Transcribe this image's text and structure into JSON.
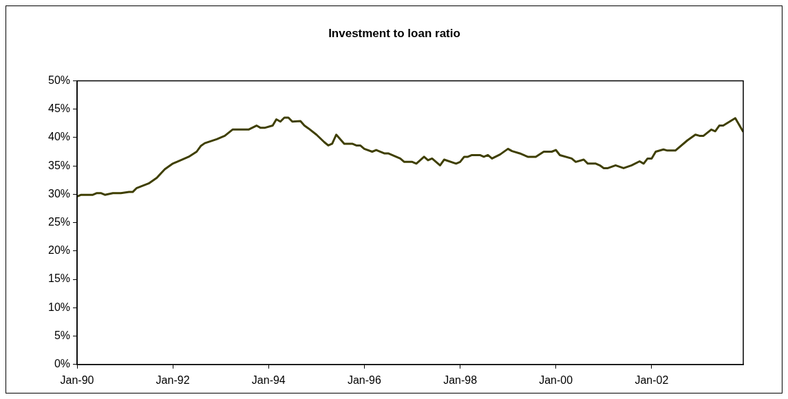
{
  "chart_data": {
    "type": "line",
    "title": "Investment to loan ratio",
    "x": [
      "1990-01",
      "1990-02",
      "1990-05",
      "1990-06",
      "1990-07",
      "1990-08",
      "1990-10",
      "1990-12",
      "1991-02",
      "1991-03",
      "1991-04",
      "1991-07",
      "1991-09",
      "1991-11",
      "1992-01",
      "1992-05",
      "1992-07",
      "1992-08",
      "1992-09",
      "1992-12",
      "1993-02",
      "1993-04",
      "1993-08",
      "1993-10",
      "1993-11",
      "1993-12",
      "1994-02",
      "1994-03",
      "1994-04",
      "1994-05",
      "1994-06",
      "1994-07",
      "1994-09",
      "1994-10",
      "1994-11",
      "1995-01",
      "1995-03",
      "1995-04",
      "1995-05",
      "1995-06",
      "1995-08",
      "1995-10",
      "1995-11",
      "1995-12",
      "1996-01",
      "1996-03",
      "1996-04",
      "1996-06",
      "1996-07",
      "1996-10",
      "1996-11",
      "1997-01",
      "1997-02",
      "1997-04",
      "1997-05",
      "1997-06",
      "1997-08",
      "1997-09",
      "1997-12",
      "1998-01",
      "1998-02",
      "1998-03",
      "1998-04",
      "1998-06",
      "1998-07",
      "1998-08",
      "1998-09",
      "1998-11",
      "1999-01",
      "1999-02",
      "1999-04",
      "1999-06",
      "1999-08",
      "1999-10",
      "1999-12",
      "2000-01",
      "2000-02",
      "2000-05",
      "2000-06",
      "2000-08",
      "2000-09",
      "2000-11",
      "2000-12",
      "2001-01",
      "2001-02",
      "2001-04",
      "2001-06",
      "2001-08",
      "2001-10",
      "2001-11",
      "2001-12",
      "2002-01",
      "2002-02",
      "2002-04",
      "2002-05",
      "2002-07",
      "2002-10",
      "2002-12",
      "2003-01",
      "2003-02",
      "2003-04",
      "2003-05",
      "2003-06",
      "2003-07",
      "2003-10",
      "2003-12"
    ],
    "series": [
      {
        "color": "#3f3f00",
        "values": [
          29.6,
          29.9,
          29.9,
          30.2,
          30.2,
          29.9,
          30.2,
          30.2,
          30.4,
          30.4,
          31.1,
          31.9,
          32.9,
          34.4,
          35.4,
          36.6,
          37.5,
          38.5,
          39.0,
          39.7,
          40.3,
          41.4,
          41.4,
          42.1,
          41.7,
          41.7,
          42.1,
          43.2,
          42.8,
          43.5,
          43.5,
          42.8,
          42.9,
          42.1,
          41.6,
          40.5,
          39.2,
          38.6,
          38.9,
          40.5,
          38.9,
          38.9,
          38.6,
          38.6,
          38.0,
          37.5,
          37.8,
          37.2,
          37.2,
          36.3,
          35.7,
          35.7,
          35.4,
          36.6,
          36.0,
          36.3,
          35.1,
          36.1,
          35.4,
          35.7,
          36.6,
          36.6,
          36.9,
          36.9,
          36.6,
          36.9,
          36.3,
          37.0,
          38.0,
          37.6,
          37.2,
          36.6,
          36.6,
          37.5,
          37.5,
          37.8,
          36.9,
          36.3,
          35.7,
          36.1,
          35.4,
          35.4,
          35.1,
          34.6,
          34.6,
          35.1,
          34.6,
          35.1,
          35.8,
          35.4,
          36.3,
          36.3,
          37.5,
          37.9,
          37.7,
          37.7,
          39.5,
          40.5,
          40.3,
          40.3,
          41.4,
          41.1,
          42.1,
          42.1,
          43.4,
          41.0
        ]
      }
    ],
    "xlim": [
      "1990-01",
      "2003-12"
    ],
    "xticks": [
      {
        "value": "1990-01",
        "label": "Jan-90"
      },
      {
        "value": "1992-01",
        "label": "Jan-92"
      },
      {
        "value": "1994-01",
        "label": "Jan-94"
      },
      {
        "value": "1996-01",
        "label": "Jan-96"
      },
      {
        "value": "1998-01",
        "label": "Jan-98"
      },
      {
        "value": "2000-01",
        "label": "Jan-00"
      },
      {
        "value": "2002-01",
        "label": "Jan-02"
      }
    ],
    "ylim": [
      0,
      50
    ],
    "yticks": [
      {
        "value": 0,
        "label": "0%"
      },
      {
        "value": 5,
        "label": "5%"
      },
      {
        "value": 10,
        "label": "10%"
      },
      {
        "value": 15,
        "label": "15%"
      },
      {
        "value": 20,
        "label": "20%"
      },
      {
        "value": 25,
        "label": "25%"
      },
      {
        "value": 30,
        "label": "30%"
      },
      {
        "value": 35,
        "label": "35%"
      },
      {
        "value": 40,
        "label": "40%"
      },
      {
        "value": 45,
        "label": "45%"
      },
      {
        "value": 50,
        "label": "50%"
      }
    ],
    "grid": false,
    "legend": false,
    "marker": "none",
    "line_style": "solid"
  }
}
